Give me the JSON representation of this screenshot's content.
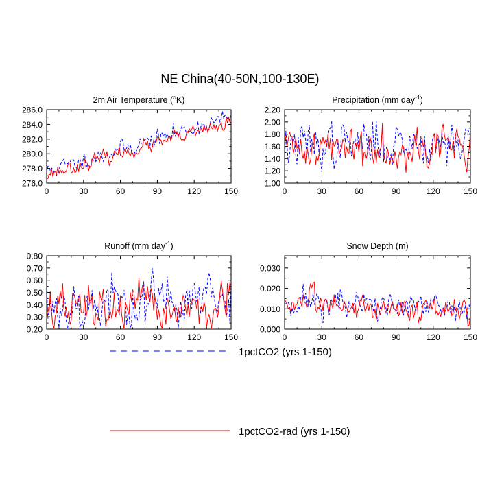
{
  "title": "NE China(40-50N,100-130E)",
  "colors": {
    "series_a": "#0000ff",
    "series_b": "#ff0000",
    "axis": "#000000"
  },
  "legend": [
    {
      "label": "1pctCO2 (yrs 1-150)",
      "style": "dashed",
      "color": "#0000ff"
    },
    {
      "label": "1pctCO2-rad (yrs 1-150)",
      "style": "solid",
      "color": "#ff0000"
    }
  ],
  "chart_data": [
    {
      "type": "line",
      "title_main": "2m Air Temperature (",
      "title_sup": "o",
      "title_tail": "K)",
      "xlim": [
        0,
        150
      ],
      "xticks": [
        0,
        30,
        60,
        90,
        120,
        150
      ],
      "xtick_labels": [
        "0",
        "30",
        "60",
        "90",
        "120",
        "150"
      ],
      "ylim": [
        276,
        286
      ],
      "yticks": [
        276,
        278,
        280,
        282,
        284,
        286
      ],
      "ytick_labels": [
        "276.0",
        "278.0",
        "280.0",
        "282.0",
        "284.0",
        "286.0"
      ],
      "series": [
        {
          "name": "1pctCO2 (yrs 1-150)",
          "style": "dashed",
          "color": "#0000ff",
          "generator": {
            "start": 277.6,
            "end": 285.0,
            "noise": 0.55,
            "seed": 11
          }
        },
        {
          "name": "1pctCO2-rad (yrs 1-150)",
          "style": "solid",
          "color": "#ff0000",
          "generator": {
            "start": 277.2,
            "end": 284.2,
            "noise": 0.45,
            "seed": 23
          }
        }
      ]
    },
    {
      "type": "line",
      "title_main": "Precipitation (mm day",
      "title_sup": "-1",
      "title_tail": ")",
      "xlim": [
        0,
        150
      ],
      "xticks": [
        0,
        30,
        60,
        90,
        120,
        150
      ],
      "xtick_labels": [
        "0",
        "30",
        "60",
        "90",
        "120",
        "150"
      ],
      "ylim": [
        1.0,
        2.2
      ],
      "yticks": [
        1.0,
        1.2,
        1.4,
        1.6,
        1.8,
        2.0,
        2.2
      ],
      "ytick_labels": [
        "1.00",
        "1.20",
        "1.40",
        "1.60",
        "1.80",
        "2.00",
        "2.20"
      ],
      "series": [
        {
          "name": "1pctCO2 (yrs 1-150)",
          "style": "dashed",
          "color": "#0000ff",
          "generator": {
            "start": 1.6,
            "end": 1.7,
            "noise": 0.17,
            "seed": 37
          }
        },
        {
          "name": "1pctCO2-rad (yrs 1-150)",
          "style": "solid",
          "color": "#ff0000",
          "generator": {
            "start": 1.58,
            "end": 1.62,
            "noise": 0.16,
            "seed": 41
          }
        }
      ]
    },
    {
      "type": "line",
      "title_main": "Runoff (mm day",
      "title_sup": "-1",
      "title_tail": ")",
      "xlim": [
        0,
        150
      ],
      "xticks": [
        0,
        30,
        60,
        90,
        120,
        150
      ],
      "xtick_labels": [
        "0",
        "30",
        "60",
        "90",
        "120",
        "150"
      ],
      "ylim": [
        0.2,
        0.8
      ],
      "yticks": [
        0.2,
        0.3,
        0.4,
        0.5,
        0.6,
        0.7,
        0.8
      ],
      "ytick_labels": [
        "0.20",
        "0.30",
        "0.40",
        "0.50",
        "0.60",
        "0.70",
        "0.80"
      ],
      "series": [
        {
          "name": "1pctCO2 (yrs 1-150)",
          "style": "dashed",
          "color": "#0000ff",
          "generator": {
            "start": 0.39,
            "end": 0.45,
            "noise": 0.11,
            "seed": 53
          }
        },
        {
          "name": "1pctCO2-rad (yrs 1-150)",
          "style": "solid",
          "color": "#ff0000",
          "generator": {
            "start": 0.37,
            "end": 0.36,
            "noise": 0.09,
            "seed": 67
          }
        }
      ]
    },
    {
      "type": "line",
      "title_main": "Snow Depth (m)",
      "title_sup": "",
      "title_tail": "",
      "xlim": [
        0,
        150
      ],
      "xticks": [
        0,
        30,
        60,
        90,
        120,
        150
      ],
      "xtick_labels": [
        "0",
        "30",
        "60",
        "90",
        "120",
        "150"
      ],
      "ylim": [
        0.0,
        0.036
      ],
      "yticks": [
        0.0,
        0.01,
        0.02,
        0.03
      ],
      "ytick_labels": [
        "0.000",
        "0.010",
        "0.020",
        "0.030"
      ],
      "series": [
        {
          "name": "1pctCO2 (yrs 1-150)",
          "style": "dashed",
          "color": "#0000ff",
          "generator": {
            "start": 0.014,
            "end": 0.009,
            "noise": 0.0035,
            "seed": 71
          }
        },
        {
          "name": "1pctCO2-rad (yrs 1-150)",
          "style": "solid",
          "color": "#ff0000",
          "generator": {
            "start": 0.013,
            "end": 0.009,
            "noise": 0.003,
            "seed": 83
          }
        }
      ]
    }
  ]
}
